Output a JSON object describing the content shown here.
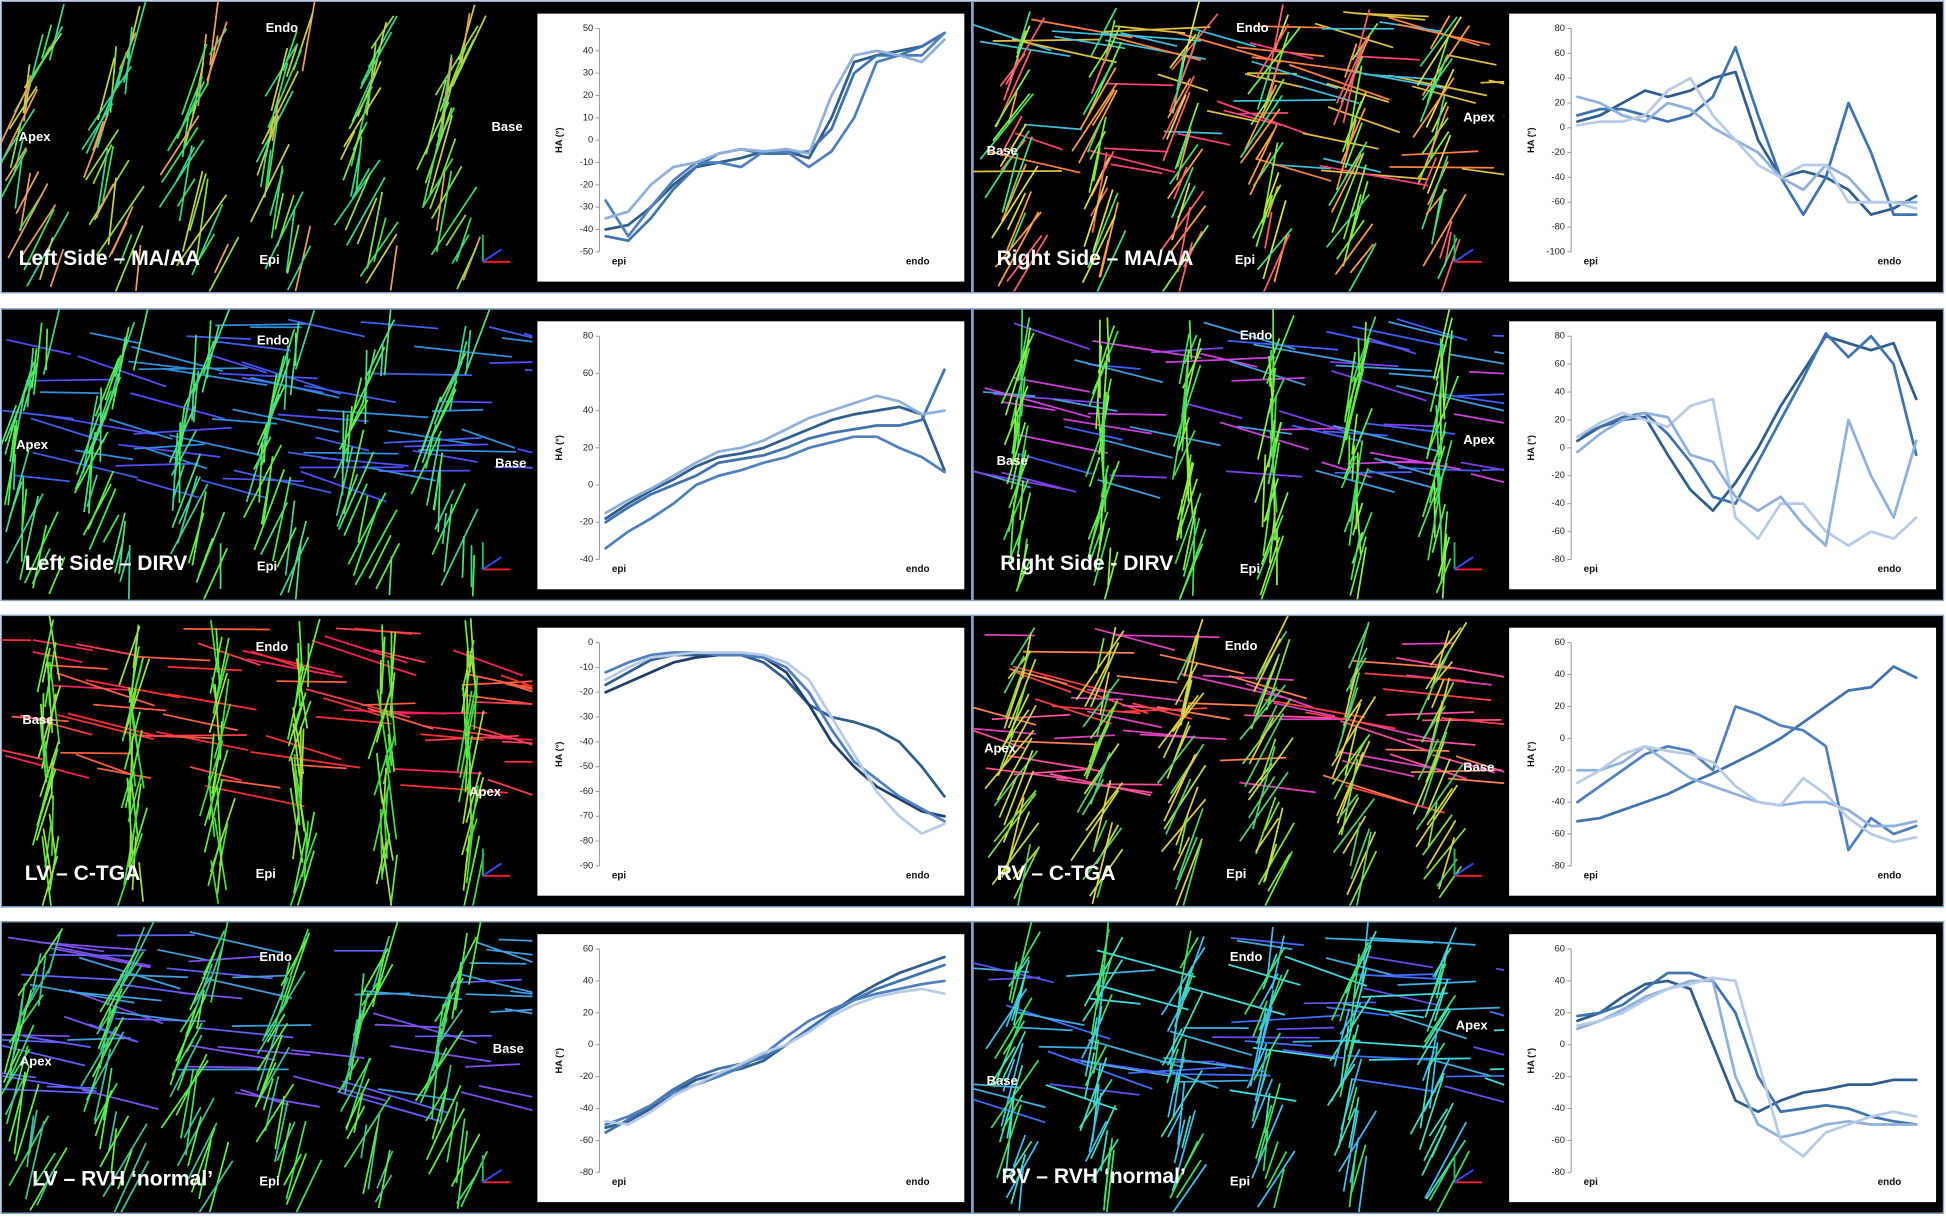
{
  "panels": [
    {
      "title": "Left Side – MA/AA",
      "labels": [
        "Endo",
        "Apex",
        "Base",
        "Epi"
      ]
    },
    {
      "title": "Right Side – MA/AA",
      "labels": [
        "Endo",
        "Apex",
        "Base",
        "Epi"
      ]
    },
    {
      "title": "Left Side – DIRV",
      "labels": [
        "Endo",
        "Apex",
        "Base",
        "Epi"
      ]
    },
    {
      "title": "Right Side - DIRV",
      "labels": [
        "Endo",
        "Apex",
        "Base",
        "Epi"
      ]
    },
    {
      "title": "LV – C-TGA",
      "labels": [
        "Endo",
        "Apex",
        "Base",
        "Epi"
      ]
    },
    {
      "title": "RV – C-TGA",
      "labels": [
        "Endo",
        "Apex",
        "Base",
        "Epi"
      ]
    },
    {
      "title": "LV – RVH ‘normal’",
      "labels": [
        "Endo",
        "Apex",
        "Base",
        "Epi"
      ]
    },
    {
      "title": "RV – RVH ‘normal’",
      "labels": [
        "Endo",
        "Apex",
        "Base",
        "Epi"
      ]
    }
  ],
  "chart_data": [
    {
      "type": "line",
      "ylabel": "HA (°)",
      "categories": [
        "epi",
        null,
        null,
        null,
        null,
        null,
        null,
        null,
        null,
        null,
        null,
        null,
        null,
        null,
        null,
        "endo"
      ],
      "ylim": [
        -50,
        50
      ],
      "yticks": [
        -50,
        -40,
        -30,
        -20,
        -10,
        0,
        10,
        20,
        30,
        40,
        50
      ],
      "series": [
        {
          "color": "#2f5d8c",
          "values": [
            -40,
            -38,
            -30,
            -20,
            -12,
            -10,
            -8,
            -5,
            -5,
            -8,
            10,
            35,
            38,
            40,
            42,
            48
          ]
        },
        {
          "color": "#3f73ad",
          "values": [
            -43,
            -45,
            -35,
            -22,
            -12,
            -6,
            -4,
            -6,
            -6,
            -5,
            5,
            30,
            38,
            38,
            42,
            48
          ]
        },
        {
          "color": "#4f80bd",
          "values": [
            -27,
            -43,
            -30,
            -18,
            -10,
            -10,
            -12,
            -5,
            -5,
            -12,
            -5,
            10,
            35,
            38,
            38,
            48
          ]
        },
        {
          "color": "#8fb0da",
          "values": [
            -35,
            -32,
            -20,
            -12,
            -10,
            -6,
            -4,
            -5,
            -4,
            -6,
            20,
            38,
            40,
            38,
            35,
            45
          ]
        }
      ]
    },
    {
      "type": "line",
      "ylabel": "HA (°)",
      "categories": [
        "epi",
        null,
        null,
        null,
        null,
        null,
        null,
        null,
        null,
        null,
        null,
        null,
        null,
        null,
        null,
        "endo"
      ],
      "ylim": [
        -100,
        80
      ],
      "yticks": [
        -100,
        -80,
        -60,
        -40,
        -20,
        0,
        20,
        40,
        60,
        80
      ],
      "series": [
        {
          "color": "#2f5d8c",
          "values": [
            5,
            10,
            20,
            30,
            25,
            30,
            40,
            45,
            -10,
            -40,
            -35,
            -40,
            -50,
            -70,
            -65,
            -55
          ]
        },
        {
          "color": "#3f73ad",
          "values": [
            10,
            15,
            15,
            10,
            5,
            10,
            25,
            65,
            10,
            -40,
            -70,
            -40,
            20,
            -20,
            -70,
            -70
          ]
        },
        {
          "color": "#8fb0da",
          "values": [
            25,
            20,
            10,
            5,
            20,
            15,
            0,
            -10,
            -20,
            -40,
            -50,
            -30,
            -40,
            -60,
            -60,
            -60
          ]
        },
        {
          "color": "#b7cbe6",
          "values": [
            2,
            5,
            5,
            10,
            30,
            40,
            10,
            -10,
            -30,
            -40,
            -30,
            -30,
            -60,
            -60,
            -60,
            -65
          ]
        }
      ]
    },
    {
      "type": "line",
      "ylabel": "HA (°)",
      "categories": [
        "epi",
        null,
        null,
        null,
        null,
        null,
        null,
        null,
        null,
        null,
        null,
        null,
        null,
        null,
        null,
        "endo"
      ],
      "ylim": [
        -40,
        80
      ],
      "yticks": [
        -40,
        -20,
        0,
        20,
        40,
        60,
        80
      ],
      "series": [
        {
          "color": "#2f5d8c",
          "values": [
            -18,
            -10,
            -3,
            3,
            10,
            15,
            17,
            20,
            25,
            30,
            35,
            38,
            40,
            42,
            38,
            8
          ]
        },
        {
          "color": "#3f73ad",
          "values": [
            -20,
            -12,
            -5,
            0,
            5,
            12,
            14,
            16,
            20,
            25,
            28,
            30,
            32,
            32,
            35,
            62
          ]
        },
        {
          "color": "#4f80bd",
          "values": [
            -34,
            -25,
            -18,
            -10,
            0,
            5,
            8,
            12,
            15,
            20,
            23,
            26,
            26,
            20,
            15,
            7
          ]
        },
        {
          "color": "#8fb0da",
          "values": [
            -15,
            -8,
            -2,
            5,
            12,
            18,
            20,
            24,
            30,
            36,
            40,
            44,
            48,
            45,
            38,
            40
          ]
        }
      ]
    },
    {
      "type": "line",
      "ylabel": "HA (°)",
      "categories": [
        "epi",
        null,
        null,
        null,
        null,
        null,
        null,
        null,
        null,
        null,
        null,
        null,
        null,
        null,
        null,
        "endo"
      ],
      "ylim": [
        -80,
        80
      ],
      "yticks": [
        -80,
        -60,
        -40,
        -20,
        0,
        20,
        40,
        60,
        80
      ],
      "series": [
        {
          "color": "#2f5d8c",
          "values": [
            5,
            15,
            20,
            22,
            -5,
            -30,
            -45,
            -25,
            0,
            30,
            55,
            80,
            75,
            70,
            75,
            35
          ]
        },
        {
          "color": "#3f73ad",
          "values": [
            8,
            15,
            22,
            25,
            10,
            -10,
            -35,
            -40,
            -10,
            20,
            50,
            82,
            65,
            80,
            60,
            -5
          ]
        },
        {
          "color": "#b7cbe6",
          "values": [
            8,
            18,
            25,
            20,
            15,
            30,
            35,
            -50,
            -65,
            -40,
            -40,
            -60,
            -70,
            -60,
            -65,
            -50
          ]
        },
        {
          "color": "#8fb0da",
          "values": [
            -3,
            10,
            20,
            25,
            22,
            -5,
            -10,
            -35,
            -45,
            -35,
            -55,
            -70,
            20,
            -20,
            -50,
            5
          ]
        }
      ]
    },
    {
      "type": "line",
      "ylabel": "HA (°)",
      "categories": [
        "epi",
        null,
        null,
        null,
        null,
        null,
        null,
        null,
        null,
        null,
        null,
        null,
        null,
        null,
        null,
        "endo"
      ],
      "ylim": [
        -90,
        0
      ],
      "yticks": [
        -90,
        -80,
        -70,
        -60,
        -50,
        -40,
        -30,
        -20,
        -10,
        0
      ],
      "series": [
        {
          "color": "#2f5d8c",
          "values": [
            -17,
            -12,
            -7,
            -5,
            -5,
            -5,
            -5,
            -8,
            -15,
            -25,
            -30,
            -32,
            -35,
            -40,
            -50,
            -62
          ]
        },
        {
          "color": "#1f3f6e",
          "values": [
            -20,
            -16,
            -12,
            -8,
            -6,
            -5,
            -5,
            -6,
            -12,
            -25,
            -40,
            -50,
            -58,
            -63,
            -68,
            -70
          ]
        },
        {
          "color": "#4f80bd",
          "values": [
            -12,
            -8,
            -5,
            -4,
            -4,
            -5,
            -5,
            -6,
            -10,
            -20,
            -35,
            -48,
            -55,
            -62,
            -67,
            -72
          ]
        },
        {
          "color": "#b7cbe6",
          "values": [
            -15,
            -10,
            -6,
            -5,
            -4,
            -4,
            -4,
            -5,
            -8,
            -15,
            -30,
            -45,
            -60,
            -70,
            -77,
            -73
          ]
        }
      ]
    },
    {
      "type": "line",
      "ylabel": "HA (°)",
      "categories": [
        "epi",
        null,
        null,
        null,
        null,
        null,
        null,
        null,
        null,
        null,
        null,
        null,
        null,
        null,
        null,
        "endo"
      ],
      "ylim": [
        -80,
        60
      ],
      "yticks": [
        -80,
        -60,
        -40,
        -20,
        0,
        20,
        40,
        60
      ],
      "series": [
        {
          "color": "#3f73ad",
          "values": [
            -52,
            -50,
            -45,
            -40,
            -35,
            -28,
            -22,
            -15,
            -8,
            0,
            10,
            20,
            30,
            32,
            45,
            38
          ]
        },
        {
          "color": "#4f80bd",
          "values": [
            -40,
            -30,
            -20,
            -10,
            -5,
            -8,
            -20,
            20,
            15,
            8,
            5,
            -5,
            -70,
            -50,
            -60,
            -55
          ]
        },
        {
          "color": "#8fb0da",
          "values": [
            -20,
            -20,
            -15,
            -5,
            -15,
            -25,
            -30,
            -35,
            -40,
            -42,
            -40,
            -40,
            -45,
            -55,
            -55,
            -52
          ]
        },
        {
          "color": "#b7cbe6",
          "values": [
            -28,
            -20,
            -10,
            -5,
            -8,
            -10,
            -15,
            -30,
            -40,
            -42,
            -25,
            -35,
            -50,
            -60,
            -65,
            -62
          ]
        }
      ]
    },
    {
      "type": "line",
      "ylabel": "HA (°)",
      "categories": [
        "epi",
        null,
        null,
        null,
        null,
        null,
        null,
        null,
        null,
        null,
        null,
        null,
        null,
        null,
        null,
        "endo"
      ],
      "ylim": [
        -80,
        60
      ],
      "yticks": [
        -80,
        -60,
        -40,
        -20,
        0,
        20,
        40,
        60
      ],
      "series": [
        {
          "color": "#2f5d8c",
          "values": [
            -52,
            -48,
            -40,
            -30,
            -22,
            -18,
            -15,
            -10,
            0,
            10,
            20,
            30,
            38,
            45,
            50,
            55
          ]
        },
        {
          "color": "#3f73ad",
          "values": [
            -55,
            -47,
            -38,
            -28,
            -20,
            -15,
            -12,
            -8,
            0,
            10,
            20,
            28,
            35,
            40,
            45,
            50
          ]
        },
        {
          "color": "#4f80bd",
          "values": [
            -50,
            -45,
            -38,
            -30,
            -25,
            -20,
            -14,
            -6,
            5,
            15,
            22,
            28,
            32,
            35,
            38,
            40
          ]
        },
        {
          "color": "#b7cbe6",
          "values": [
            -48,
            -50,
            -42,
            -32,
            -25,
            -18,
            -12,
            -5,
            0,
            8,
            18,
            25,
            30,
            33,
            35,
            32
          ]
        }
      ]
    },
    {
      "type": "line",
      "ylabel": "HA (°)",
      "categories": [
        "epi",
        null,
        null,
        null,
        null,
        null,
        null,
        null,
        null,
        null,
        null,
        null,
        null,
        null,
        null,
        "endo"
      ],
      "ylim": [
        -80,
        60
      ],
      "yticks": [
        -80,
        -60,
        -40,
        -20,
        0,
        20,
        40,
        60
      ],
      "series": [
        {
          "color": "#2f5d8c",
          "values": [
            15,
            20,
            30,
            38,
            40,
            35,
            0,
            -35,
            -42,
            -35,
            -30,
            -28,
            -25,
            -25,
            -22,
            -22
          ]
        },
        {
          "color": "#3f73ad",
          "values": [
            18,
            20,
            25,
            35,
            45,
            45,
            40,
            20,
            -20,
            -42,
            -40,
            -38,
            -40,
            -45,
            -48,
            -50
          ]
        },
        {
          "color": "#8fb0da",
          "values": [
            10,
            15,
            22,
            30,
            35,
            40,
            40,
            -20,
            -50,
            -58,
            -55,
            -50,
            -48,
            -50,
            -50,
            -50
          ]
        },
        {
          "color": "#b7cbe6",
          "values": [
            12,
            15,
            20,
            28,
            35,
            38,
            42,
            40,
            -10,
            -60,
            -70,
            -55,
            -50,
            -45,
            -42,
            -45
          ]
        }
      ]
    }
  ]
}
